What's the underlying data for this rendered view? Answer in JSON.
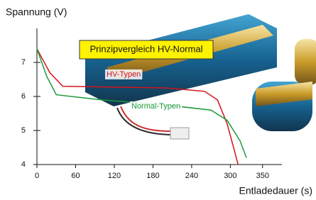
{
  "chart_data": {
    "type": "line",
    "title": "Spannung (V)",
    "x_label": "Entladedauer (s)",
    "annotation": "Prinzipvergleich HV-Normal",
    "xlim": [
      0,
      380
    ],
    "ylim": [
      4,
      8
    ],
    "xticks": [
      0,
      60,
      120,
      180,
      240,
      300,
      350
    ],
    "yticks": [
      4,
      5,
      6,
      7
    ],
    "series": [
      {
        "name": "HV-Typen",
        "color": "#d4141c",
        "x": [
          0,
          20,
          40,
          100,
          200,
          260,
          280,
          295,
          305,
          312
        ],
        "values": [
          7.4,
          6.7,
          6.3,
          6.28,
          6.25,
          6.15,
          5.9,
          5.2,
          4.5,
          4.0
        ]
      },
      {
        "name": "Normal-Typen",
        "color": "#1a9a3a",
        "x": [
          0,
          15,
          30,
          100,
          200,
          270,
          295,
          315,
          325
        ],
        "values": [
          7.4,
          6.6,
          6.05,
          5.9,
          5.75,
          5.6,
          5.3,
          4.7,
          4.2
        ]
      }
    ]
  }
}
